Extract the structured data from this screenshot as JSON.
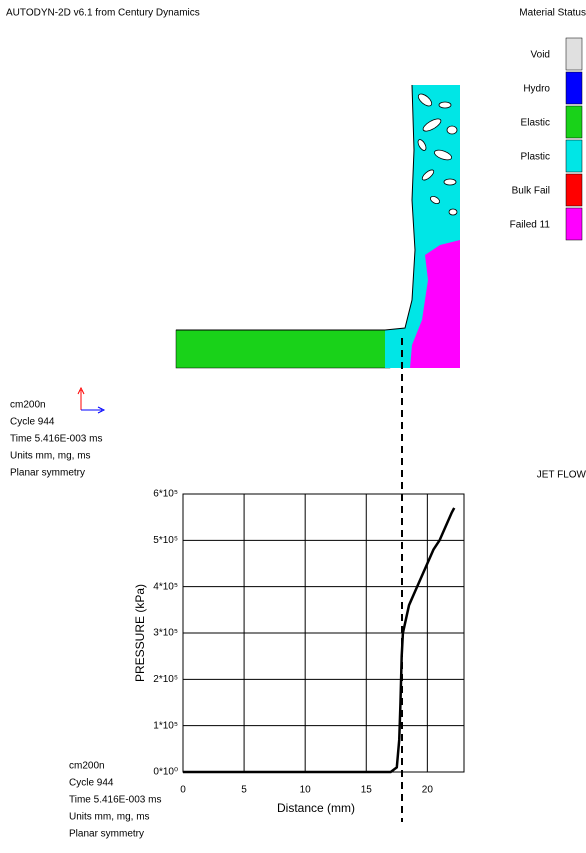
{
  "header": {
    "title": "AUTODYN-2D v6.1 from Century Dynamics",
    "view_label": "JET FLOW"
  },
  "material_legend": {
    "title": "Material Status",
    "items": [
      {
        "name": "Void",
        "color": "#e0e0e0"
      },
      {
        "name": "Hydro",
        "color": "#0000ff"
      },
      {
        "name": "Elastic",
        "color": "#19d219"
      },
      {
        "name": "Plastic",
        "color": "#00e6e6"
      },
      {
        "name": "Bulk Fail",
        "color": "#ff0000"
      },
      {
        "name": "Failed 11",
        "color": "#ff00ff"
      }
    ]
  },
  "info": [
    "cm200n",
    "Cycle 944",
    "Time 5.416E-003 ms",
    "Units mm, mg, ms",
    "Planar symmetry"
  ],
  "chart_data": {
    "type": "line",
    "x_label": "Distance (mm)",
    "y_label": "PRESSURE  (kPa)",
    "x": [
      0,
      5,
      10,
      15,
      17,
      17.5,
      17.7,
      17.8,
      17.9,
      18,
      18.5,
      19,
      19.5,
      20,
      20.5,
      21,
      21.5,
      22,
      22.2
    ],
    "series": [
      {
        "color": "#000000",
        "values": [
          0,
          0,
          0,
          0,
          0,
          10000,
          70000,
          150000,
          250000,
          300000,
          360000,
          390000,
          420000,
          450000,
          480000,
          500000,
          530000,
          560000,
          570000
        ]
      }
    ],
    "xlim": [
      0,
      23
    ],
    "ylim": [
      0,
      600000
    ],
    "xticks": [
      0,
      5,
      10,
      15,
      20
    ],
    "yticks": [
      {
        "value": 0,
        "label": "0*10⁰"
      },
      {
        "value": 100000,
        "label": "1*10⁵"
      },
      {
        "value": 200000,
        "label": "2*10⁵"
      },
      {
        "value": 300000,
        "label": "3*10⁵"
      },
      {
        "value": 400000,
        "label": "4*10⁵"
      },
      {
        "value": 500000,
        "label": "5*10⁵"
      },
      {
        "value": 600000,
        "label": "6*10⁵"
      }
    ],
    "grid": true
  }
}
